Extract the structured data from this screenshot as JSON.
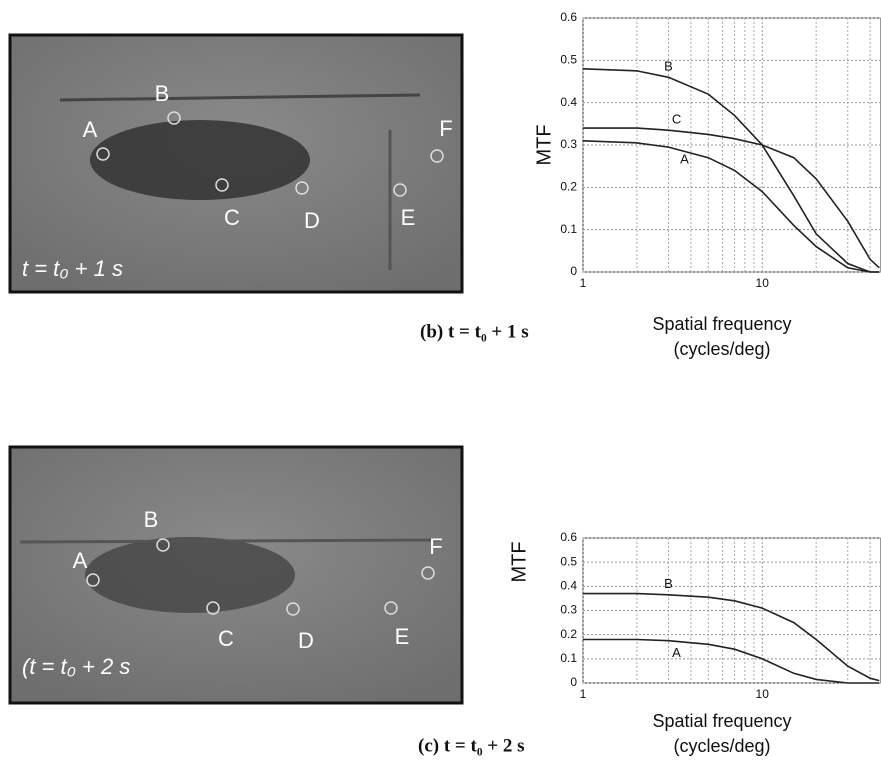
{
  "photos": [
    {
      "time_label": "t = t₀ + 1 s",
      "points": [
        "A",
        "B",
        "C",
        "D",
        "E",
        "F"
      ]
    },
    {
      "time_label": "(t = t₀ + 2 s",
      "points": [
        "A",
        "B",
        "C",
        "D",
        "E",
        "F"
      ]
    }
  ],
  "captions": [
    "(b) t = t₀ + 1 s",
    "(c) t = t₀ + 2 s"
  ],
  "chart_data": [
    {
      "type": "line",
      "log_x": true,
      "grid": true,
      "ylabel": "MTF",
      "xlabel": [
        "Spatial frequency",
        "(cycles/deg)"
      ],
      "x": [
        1,
        2,
        3,
        5,
        7,
        10,
        15,
        20,
        30,
        40,
        45
      ],
      "series": [
        {
          "name": "B",
          "color": "#222222",
          "values": [
            0.48,
            0.475,
            0.46,
            0.42,
            0.37,
            0.3,
            0.18,
            0.09,
            0.02,
            0,
            0
          ]
        },
        {
          "name": "C",
          "color": "#222222",
          "values": [
            0.34,
            0.34,
            0.335,
            0.325,
            0.315,
            0.3,
            0.27,
            0.22,
            0.12,
            0.03,
            0.01
          ]
        },
        {
          "name": "A",
          "color": "#222222",
          "values": [
            0.31,
            0.305,
            0.295,
            0.27,
            0.24,
            0.19,
            0.11,
            0.06,
            0.01,
            0,
            0
          ]
        }
      ],
      "xlim": [
        1,
        46
      ],
      "xticks": [
        1,
        10
      ],
      "minor_xticks": [
        2,
        3,
        4,
        5,
        6,
        7,
        8,
        9,
        20,
        30,
        40
      ],
      "ylim": [
        0,
        0.6
      ],
      "yticks": [
        0,
        0.1,
        0.2,
        0.3,
        0.4,
        0.5,
        0.6
      ]
    },
    {
      "type": "line",
      "log_x": true,
      "grid": true,
      "ylabel": "MTF",
      "xlabel": [
        "Spatial frequency",
        "(cycles/deg)"
      ],
      "x": [
        1,
        2,
        3,
        5,
        7,
        10,
        15,
        20,
        30,
        40,
        45
      ],
      "series": [
        {
          "name": "B",
          "color": "#222222",
          "values": [
            0.37,
            0.37,
            0.365,
            0.355,
            0.34,
            0.31,
            0.25,
            0.18,
            0.07,
            0.02,
            0.01
          ]
        },
        {
          "name": "A",
          "color": "#222222",
          "values": [
            0.18,
            0.18,
            0.175,
            0.16,
            0.14,
            0.1,
            0.04,
            0.015,
            0,
            0,
            0
          ]
        }
      ],
      "xlim": [
        1,
        46
      ],
      "xticks": [
        1,
        10
      ],
      "minor_xticks": [
        2,
        3,
        4,
        5,
        6,
        7,
        8,
        9,
        20,
        30,
        40
      ],
      "ylim": [
        0,
        0.6
      ],
      "yticks": [
        0,
        0.1,
        0.2,
        0.3,
        0.4,
        0.5,
        0.6
      ]
    }
  ]
}
